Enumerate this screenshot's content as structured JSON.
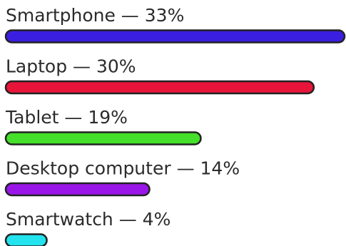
{
  "chart_data": {
    "type": "bar",
    "orientation": "horizontal",
    "categories": [
      "Smartphone",
      "Laptop",
      "Tablet",
      "Desktop computer",
      "Smartwatch"
    ],
    "values": [
      33,
      30,
      19,
      14,
      4
    ],
    "labels": [
      "Smartphone — 33%",
      "Laptop — 30%",
      "Tablet — 19%",
      "Desktop computer — 14%",
      "Smartwatch — 4%"
    ],
    "colors": [
      "#3a1fe0",
      "#e8143a",
      "#44e02a",
      "#9a16e8",
      "#22e3ee"
    ],
    "title": "",
    "xlabel": "",
    "ylabel": "",
    "grid": false,
    "legend": "none"
  }
}
